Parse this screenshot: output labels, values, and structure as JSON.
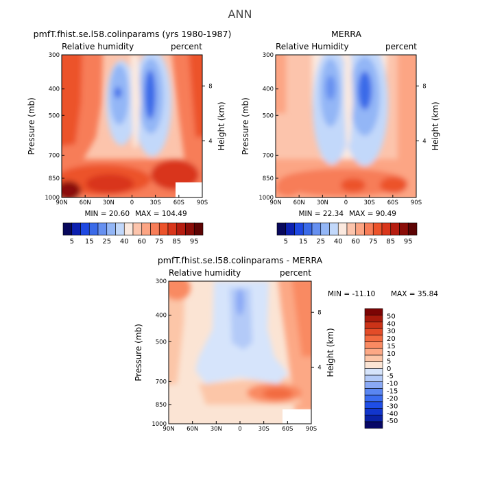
{
  "main_title": "ANN",
  "axis_labels": {
    "pressure": "Pressure (mb)",
    "height": "Height (km)"
  },
  "colors": {
    "humidity_scale": [
      "#08085c",
      "#0c20b0",
      "#1e48e2",
      "#3a6ae8",
      "#6690f0",
      "#93b6f6",
      "#c2d8fa",
      "#fbe9df",
      "#fcc4ac",
      "#fca584",
      "#f77d58",
      "#ec532b",
      "#d9361b",
      "#b61d10",
      "#8b0d08",
      "#5d0404"
    ],
    "diff_scale": [
      "#080866",
      "#0a22a6",
      "#1236cc",
      "#1f4ee6",
      "#3b6cf0",
      "#5a86f2",
      "#8aa9f5",
      "#b3caf8",
      "#d6e4fb",
      "#fbe4d4",
      "#fcc6a8",
      "#fca885",
      "#f98a62",
      "#f26a40",
      "#e34c28",
      "#cb3318",
      "#a81a0c",
      "#7b0404"
    ]
  },
  "chart_data": [
    {
      "type": "heatmap",
      "title": "pmfT.fhist.se.l58.colinparams (yrs 1980-1987)",
      "variable": "Relative humidity",
      "units": "percent",
      "x_ticks": [
        "90N",
        "60N",
        "30N",
        "0",
        "30S",
        "60S",
        "90S"
      ],
      "y_ticks": [
        "300",
        "400",
        "500",
        "700",
        "850",
        "1000"
      ],
      "y_right_ticks": [
        "8",
        "4"
      ],
      "xlim": [
        90,
        -90
      ],
      "ylim_mb": [
        1000,
        300
      ],
      "min_label": "MIN = 20.60",
      "max_label": "MAX = 104.49",
      "min": 20.6,
      "max": 104.49,
      "levels": [
        5,
        10,
        15,
        20,
        25,
        30,
        40,
        50,
        60,
        65,
        75,
        80,
        85,
        90,
        95
      ],
      "colorbar_labels": [
        "5",
        "15",
        "25",
        "40",
        "60",
        "75",
        "85",
        "95"
      ]
    },
    {
      "type": "heatmap",
      "title": "MERRA",
      "variable": "Relative Humidity",
      "units": "percent",
      "x_ticks": [
        "90N",
        "60N",
        "30N",
        "0",
        "30S",
        "60S",
        "90S"
      ],
      "y_ticks": [
        "300",
        "400",
        "500",
        "700",
        "850",
        "1000"
      ],
      "y_right_ticks": [
        "8",
        "4"
      ],
      "xlim": [
        90,
        -90
      ],
      "ylim_mb": [
        1000,
        300
      ],
      "min_label": "MIN = 22.34",
      "max_label": "MAX = 90.49",
      "min": 22.34,
      "max": 90.49,
      "levels": [
        5,
        10,
        15,
        20,
        25,
        30,
        40,
        50,
        60,
        65,
        75,
        80,
        85,
        90,
        95
      ],
      "colorbar_labels": [
        "5",
        "15",
        "25",
        "40",
        "60",
        "75",
        "85",
        "95"
      ]
    },
    {
      "type": "heatmap",
      "title": "pmfT.fhist.se.l58.colinparams - MERRA",
      "variable": "Relative humidity",
      "units": "percent",
      "x_ticks": [
        "90N",
        "60N",
        "30N",
        "0",
        "30S",
        "60S",
        "90S"
      ],
      "y_ticks": [
        "300",
        "400",
        "500",
        "700",
        "850",
        "1000"
      ],
      "y_right_ticks": [
        "8",
        "4"
      ],
      "xlim": [
        90,
        -90
      ],
      "ylim_mb": [
        1000,
        300
      ],
      "min_label": "MIN = -11.10",
      "max_label": "MAX = 35.84",
      "min": -11.1,
      "max": 35.84,
      "levels": [
        -50,
        -40,
        -30,
        -20,
        -15,
        -10,
        -5,
        0,
        5,
        10,
        15,
        20,
        30,
        40,
        50
      ],
      "colorbar_labels": [
        "50",
        "40",
        "30",
        "20",
        "15",
        "10",
        "5",
        "0",
        "-5",
        "-10",
        "-15",
        "-20",
        "-30",
        "-40",
        "-50"
      ]
    }
  ]
}
